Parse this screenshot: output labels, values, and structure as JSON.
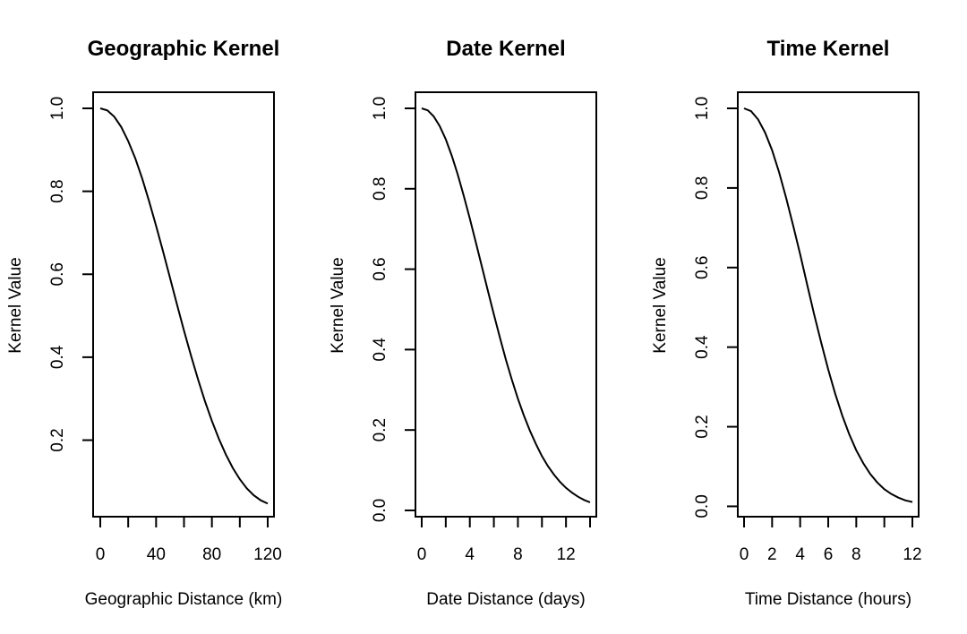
{
  "chart_data": [
    {
      "type": "line",
      "title": "Geographic Kernel",
      "xlabel": "Geographic Distance (km)",
      "ylabel": "Kernel Value",
      "xlim": [
        0,
        120
      ],
      "ylim": [
        0.05,
        1.0
      ],
      "xticks": [
        0,
        20,
        40,
        60,
        80,
        100,
        120
      ],
      "xtick_labels": [
        "0",
        "",
        "40",
        "",
        "80",
        "",
        "120"
      ],
      "yticks": [
        0.2,
        0.4,
        0.6,
        0.8,
        1.0
      ],
      "ytick_labels": [
        "0.2",
        "0.4",
        "0.6",
        "0.8",
        "1.0"
      ],
      "grid": false,
      "series": [
        {
          "values": {
            "x": [
              0,
              5,
              10,
              15,
              20,
              25,
              30,
              35,
              40,
              45,
              50,
              55,
              60,
              65,
              70,
              75,
              80,
              85,
              90,
              95,
              100,
              105,
              110,
              115,
              120
            ],
            "y": [
              1.0,
              0.995,
              0.98,
              0.955,
              0.921,
              0.88,
              0.831,
              0.776,
              0.717,
              0.655,
              0.591,
              0.527,
              0.464,
              0.404,
              0.347,
              0.294,
              0.246,
              0.203,
              0.165,
              0.133,
              0.106,
              0.084,
              0.067,
              0.055,
              0.047
            ]
          }
        }
      ]
    },
    {
      "type": "line",
      "title": "Date Kernel",
      "xlabel": "Date Distance (days)",
      "ylabel": "Kernel Value",
      "xlim": [
        0,
        14
      ],
      "ylim": [
        0.02,
        1.0
      ],
      "xticks": [
        0,
        2,
        4,
        6,
        8,
        10,
        12,
        14
      ],
      "xtick_labels": [
        "0",
        "",
        "4",
        "",
        "8",
        "",
        "12",
        ""
      ],
      "yticks": [
        0.0,
        0.2,
        0.4,
        0.6,
        0.8,
        1.0
      ],
      "ytick_labels": [
        "0.0",
        "0.2",
        "0.4",
        "0.6",
        "0.8",
        "1.0"
      ],
      "grid": false,
      "series": [
        {
          "values": {
            "x": [
              0,
              0.5,
              1,
              1.5,
              2,
              2.5,
              3,
              3.5,
              4,
              4.5,
              5,
              5.5,
              6,
              6.5,
              7,
              7.5,
              8,
              8.5,
              9,
              9.5,
              10,
              10.5,
              11,
              11.5,
              12,
              12.5,
              13,
              13.5,
              14
            ],
            "y": [
              1.0,
              0.995,
              0.98,
              0.956,
              0.923,
              0.882,
              0.835,
              0.782,
              0.726,
              0.667,
              0.607,
              0.546,
              0.487,
              0.43,
              0.375,
              0.325,
              0.278,
              0.236,
              0.198,
              0.165,
              0.135,
              0.11,
              0.089,
              0.071,
              0.056,
              0.044,
              0.034,
              0.026,
              0.02
            ]
          }
        }
      ]
    },
    {
      "type": "line",
      "title": "Time Kernel",
      "xlabel": "Time Distance (hours)",
      "ylabel": "Kernel Value",
      "xlim": [
        0,
        12
      ],
      "ylim": [
        0.01,
        1.0
      ],
      "xticks": [
        0,
        2,
        4,
        6,
        8,
        10,
        12
      ],
      "xtick_labels": [
        "0",
        "2",
        "4",
        "6",
        "8",
        "",
        "12"
      ],
      "yticks": [
        0.0,
        0.2,
        0.4,
        0.6,
        0.8,
        1.0
      ],
      "ytick_labels": [
        "0.0",
        "0.2",
        "0.4",
        "0.6",
        "0.8",
        "1.0"
      ],
      "grid": false,
      "series": [
        {
          "values": {
            "x": [
              0,
              0.5,
              1,
              1.5,
              2,
              2.5,
              3,
              3.5,
              4,
              4.5,
              5,
              5.5,
              6,
              6.5,
              7,
              7.5,
              8,
              8.5,
              9,
              9.5,
              10,
              10.5,
              11,
              11.5,
              12
            ],
            "y": [
              1.0,
              0.993,
              0.972,
              0.939,
              0.895,
              0.839,
              0.775,
              0.706,
              0.633,
              0.557,
              0.482,
              0.411,
              0.344,
              0.283,
              0.228,
              0.181,
              0.141,
              0.108,
              0.081,
              0.06,
              0.043,
              0.031,
              0.022,
              0.015,
              0.011
            ]
          }
        }
      ]
    }
  ]
}
